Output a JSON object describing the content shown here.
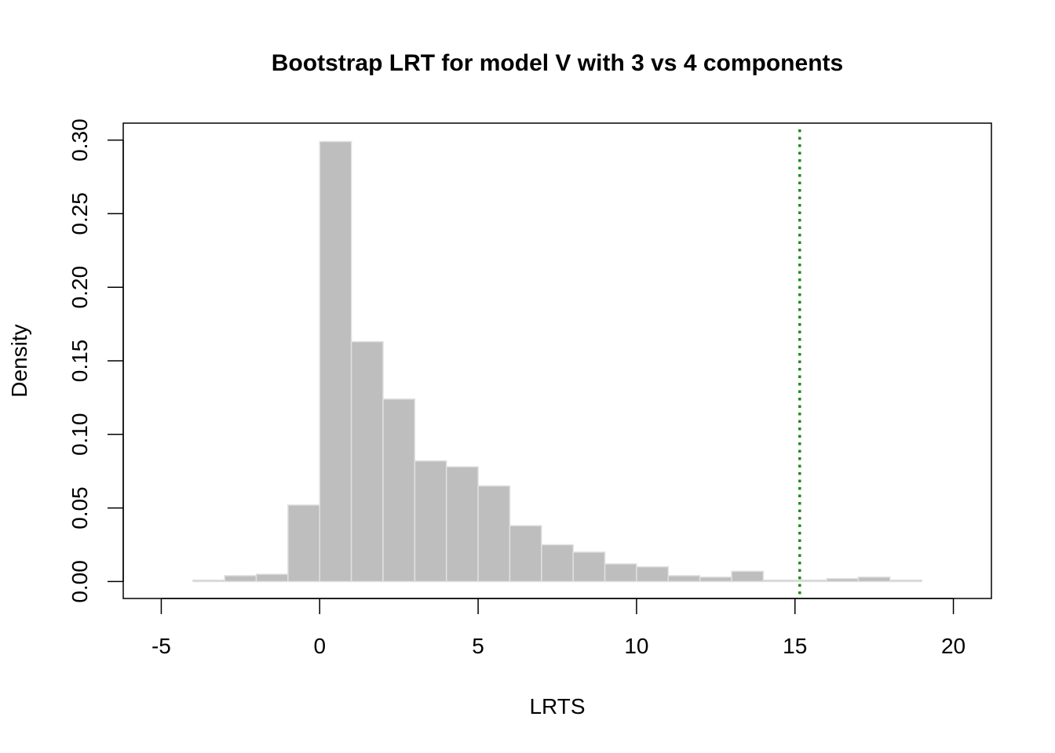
{
  "chart_data": {
    "type": "bar",
    "title": "Bootstrap LRT for model V with 3 vs 4 components",
    "xlabel": "LRTS",
    "ylabel": "Density",
    "xlim": [
      -6.2,
      21.2
    ],
    "ylim": [
      -0.0115,
      0.3115
    ],
    "x_ticks": [
      -5,
      0,
      5,
      10,
      15,
      20
    ],
    "x_tick_labels": [
      "-5",
      "0",
      "5",
      "10",
      "15",
      "20"
    ],
    "y_ticks": [
      0,
      0.05,
      0.1,
      0.15,
      0.2,
      0.25,
      0.3
    ],
    "y_tick_labels": [
      "0.00",
      "0.05",
      "0.10",
      "0.15",
      "0.20",
      "0.25",
      "0.30"
    ],
    "grid": false,
    "bar_color": "#bebebe",
    "bar_border_color": "#e0e0e0",
    "bins": [
      {
        "x0": -4,
        "x1": -3,
        "density": 0.001
      },
      {
        "x0": -3,
        "x1": -2,
        "density": 0.004
      },
      {
        "x0": -2,
        "x1": -1,
        "density": 0.005
      },
      {
        "x0": -1,
        "x1": 0,
        "density": 0.052
      },
      {
        "x0": 0,
        "x1": 1,
        "density": 0.299
      },
      {
        "x0": 1,
        "x1": 2,
        "density": 0.163
      },
      {
        "x0": 2,
        "x1": 3,
        "density": 0.124
      },
      {
        "x0": 3,
        "x1": 4,
        "density": 0.082
      },
      {
        "x0": 4,
        "x1": 5,
        "density": 0.078
      },
      {
        "x0": 5,
        "x1": 6,
        "density": 0.065
      },
      {
        "x0": 6,
        "x1": 7,
        "density": 0.038
      },
      {
        "x0": 7,
        "x1": 8,
        "density": 0.025
      },
      {
        "x0": 8,
        "x1": 9,
        "density": 0.02
      },
      {
        "x0": 9,
        "x1": 10,
        "density": 0.012
      },
      {
        "x0": 10,
        "x1": 11,
        "density": 0.01
      },
      {
        "x0": 11,
        "x1": 12,
        "density": 0.004
      },
      {
        "x0": 12,
        "x1": 13,
        "density": 0.003
      },
      {
        "x0": 13,
        "x1": 14,
        "density": 0.007
      },
      {
        "x0": 14,
        "x1": 15,
        "density": 0.001
      },
      {
        "x0": 15,
        "x1": 16,
        "density": 0.001
      },
      {
        "x0": 16,
        "x1": 17,
        "density": 0.002
      },
      {
        "x0": 17,
        "x1": 18,
        "density": 0.003
      },
      {
        "x0": 18,
        "x1": 19,
        "density": 0.001
      }
    ],
    "reference_line": {
      "x": 15.15,
      "color": "#228b22",
      "style": "dotted"
    }
  }
}
